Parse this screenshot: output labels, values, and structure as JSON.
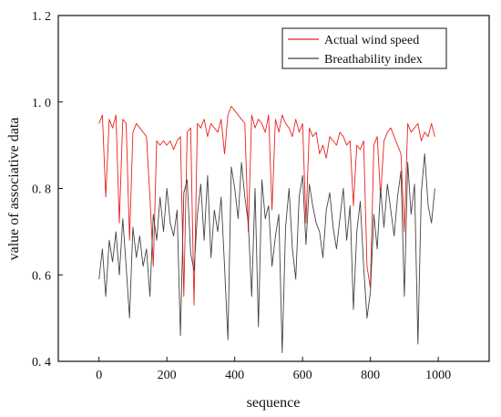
{
  "chart_data": {
    "type": "line",
    "title": "",
    "xlabel": "sequence",
    "ylabel": "value of associative data",
    "xlim": [
      -120,
      1150
    ],
    "ylim": [
      0.4,
      1.2
    ],
    "xticks": [
      0,
      200,
      400,
      600,
      800,
      1000
    ],
    "xtick_labels": [
      "0",
      "200",
      "400",
      "600",
      "800",
      "1000"
    ],
    "yticks": [
      0.4,
      0.6,
      0.8,
      1.0,
      1.2
    ],
    "ytick_labels": [
      "0. 4",
      "0. 6",
      "0. 8",
      "1. 0",
      "1. 2"
    ],
    "grid": false,
    "legend_position": "top-right",
    "series": [
      {
        "name": "Actual wind speed",
        "color": "#e8221c",
        "x": [
          0,
          10,
          20,
          30,
          40,
          50,
          60,
          70,
          80,
          90,
          100,
          110,
          120,
          130,
          140,
          150,
          160,
          170,
          180,
          190,
          200,
          210,
          220,
          230,
          240,
          250,
          260,
          270,
          280,
          290,
          300,
          310,
          320,
          330,
          340,
          350,
          360,
          370,
          380,
          390,
          400,
          410,
          420,
          430,
          440,
          450,
          460,
          470,
          480,
          490,
          500,
          510,
          520,
          530,
          540,
          550,
          560,
          570,
          580,
          590,
          600,
          610,
          620,
          630,
          640,
          650,
          660,
          670,
          680,
          690,
          700,
          710,
          720,
          730,
          740,
          750,
          760,
          770,
          780,
          790,
          800,
          810,
          820,
          830,
          840,
          850,
          860,
          870,
          880,
          890,
          900,
          910,
          920,
          930,
          940,
          950,
          960,
          970,
          980,
          990
        ],
        "y": [
          0.95,
          0.97,
          0.78,
          0.96,
          0.94,
          0.97,
          0.72,
          0.96,
          0.95,
          0.68,
          0.93,
          0.95,
          0.94,
          0.93,
          0.92,
          0.78,
          0.62,
          0.91,
          0.9,
          0.91,
          0.9,
          0.91,
          0.89,
          0.91,
          0.92,
          0.55,
          0.93,
          0.94,
          0.53,
          0.95,
          0.94,
          0.96,
          0.92,
          0.95,
          0.94,
          0.93,
          0.96,
          0.88,
          0.97,
          0.99,
          0.98,
          0.97,
          0.96,
          0.95,
          0.7,
          0.97,
          0.94,
          0.96,
          0.95,
          0.93,
          0.97,
          0.75,
          0.96,
          0.93,
          0.97,
          0.95,
          0.94,
          0.92,
          0.96,
          0.93,
          0.95,
          0.72,
          0.94,
          0.92,
          0.93,
          0.88,
          0.9,
          0.87,
          0.92,
          0.91,
          0.9,
          0.93,
          0.92,
          0.9,
          0.91,
          0.76,
          0.9,
          0.89,
          0.91,
          0.62,
          0.57,
          0.9,
          0.92,
          0.78,
          0.91,
          0.93,
          0.94,
          0.92,
          0.9,
          0.88,
          0.7,
          0.95,
          0.93,
          0.94,
          0.95,
          0.91,
          0.93,
          0.92,
          0.95,
          0.92
        ]
      },
      {
        "name": "Breathability index",
        "color": "#444444",
        "x": [
          0,
          10,
          20,
          30,
          40,
          50,
          60,
          70,
          80,
          90,
          100,
          110,
          120,
          130,
          140,
          150,
          160,
          170,
          180,
          190,
          200,
          210,
          220,
          230,
          240,
          250,
          260,
          270,
          280,
          290,
          300,
          310,
          320,
          330,
          340,
          350,
          360,
          370,
          380,
          390,
          400,
          410,
          420,
          430,
          440,
          450,
          460,
          470,
          480,
          490,
          500,
          510,
          520,
          530,
          540,
          550,
          560,
          570,
          580,
          590,
          600,
          610,
          620,
          630,
          640,
          650,
          660,
          670,
          680,
          690,
          700,
          710,
          720,
          730,
          740,
          750,
          760,
          770,
          780,
          790,
          800,
          810,
          820,
          830,
          840,
          850,
          860,
          870,
          880,
          890,
          900,
          910,
          920,
          930,
          940,
          950,
          960,
          970,
          980,
          990
        ],
        "y": [
          0.59,
          0.66,
          0.55,
          0.68,
          0.63,
          0.7,
          0.6,
          0.73,
          0.62,
          0.5,
          0.71,
          0.64,
          0.69,
          0.62,
          0.66,
          0.55,
          0.74,
          0.68,
          0.78,
          0.7,
          0.8,
          0.72,
          0.69,
          0.75,
          0.46,
          0.79,
          0.82,
          0.65,
          0.61,
          0.74,
          0.81,
          0.68,
          0.83,
          0.64,
          0.75,
          0.7,
          0.78,
          0.62,
          0.45,
          0.85,
          0.8,
          0.73,
          0.86,
          0.78,
          0.72,
          0.55,
          0.8,
          0.48,
          0.82,
          0.73,
          0.76,
          0.62,
          0.69,
          0.74,
          0.42,
          0.71,
          0.8,
          0.66,
          0.59,
          0.78,
          0.83,
          0.67,
          0.81,
          0.76,
          0.72,
          0.7,
          0.64,
          0.75,
          0.79,
          0.71,
          0.66,
          0.73,
          0.8,
          0.68,
          0.76,
          0.52,
          0.7,
          0.77,
          0.62,
          0.5,
          0.56,
          0.74,
          0.66,
          0.8,
          0.71,
          0.81,
          0.75,
          0.69,
          0.78,
          0.84,
          0.55,
          0.86,
          0.74,
          0.81,
          0.44,
          0.79,
          0.88,
          0.76,
          0.72,
          0.8
        ]
      }
    ]
  }
}
